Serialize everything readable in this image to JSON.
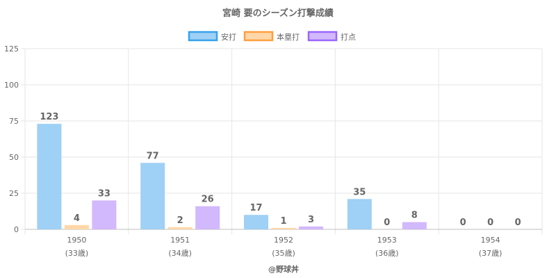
{
  "chart_data": {
    "type": "bar",
    "title": "宮崎 要のシーズン打撃成績",
    "categories": [
      "1950",
      "1951",
      "1952",
      "1953",
      "1954"
    ],
    "category_sublabels": [
      "(33歳)",
      "(34歳)",
      "(35歳)",
      "(36歳)",
      "(37歳)"
    ],
    "series": [
      {
        "name": "安打",
        "values": [
          123,
          77,
          17,
          35,
          0
        ],
        "color": "#9fd0f5",
        "border_color": "#36a2eb"
      },
      {
        "name": "本塁打",
        "values": [
          4,
          2,
          1,
          0,
          0
        ],
        "color": "#ffd7a8",
        "border_color": "#ff9f40"
      },
      {
        "name": "打点",
        "values": [
          33,
          26,
          3,
          8,
          0
        ],
        "color": "#d2b8fc",
        "border_color": "#9966ff"
      }
    ],
    "bar_heights": [
      [
        73,
        46,
        10,
        21,
        0
      ],
      [
        3,
        1.5,
        1,
        0,
        0
      ],
      [
        20,
        16,
        2,
        5,
        0
      ]
    ],
    "ylim": [
      0,
      125
    ],
    "yticks": [
      0,
      25,
      50,
      75,
      100,
      125
    ],
    "grid": true,
    "legend_position": "top",
    "credit": "@野球丼"
  }
}
